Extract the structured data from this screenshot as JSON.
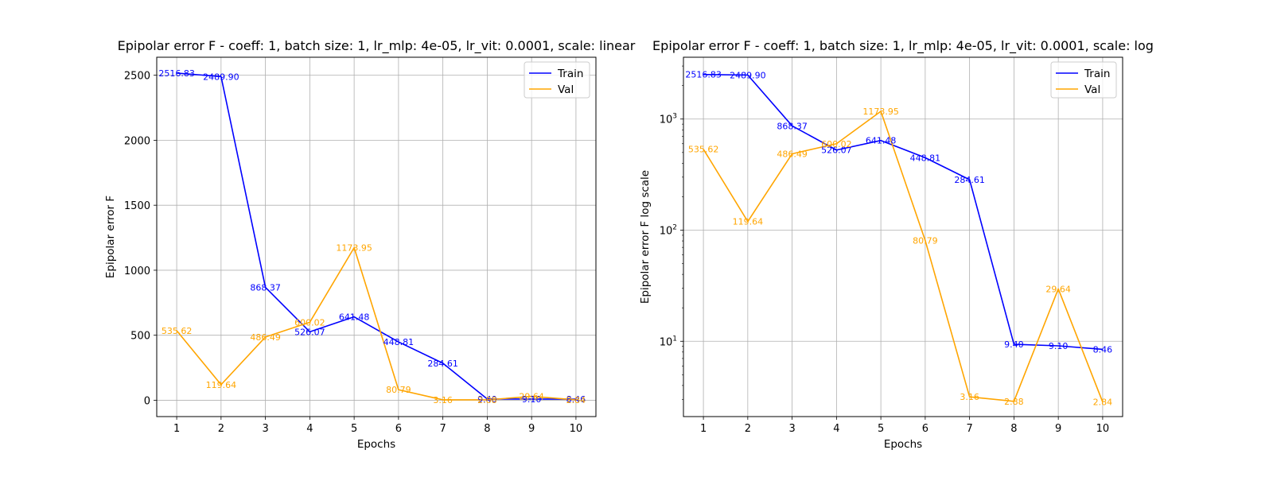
{
  "colors": {
    "train": "#0000ff",
    "val": "#ffa500",
    "grid": "#b0b0b0",
    "axis": "#000000"
  },
  "chart_data": [
    {
      "type": "line",
      "title": "Epipolar error F - coeff: 1, batch size: 1, lr_mlp: 4e-05, lr_vit: 0.0001, scale: linear",
      "xlabel": "Epochs",
      "ylabel": "Epipolar error F",
      "yscale": "linear",
      "xlim": [
        0.55,
        10.45
      ],
      "ylim": [
        -125.7,
        2638.5
      ],
      "x": [
        1,
        2,
        3,
        4,
        5,
        6,
        7,
        8,
        9,
        10
      ],
      "xticks": [
        "1",
        "2",
        "3",
        "4",
        "5",
        "6",
        "7",
        "8",
        "9",
        "10"
      ],
      "yticks": [
        {
          "value": 0,
          "label": "0"
        },
        {
          "value": 500,
          "label": "500"
        },
        {
          "value": 1000,
          "label": "1000"
        },
        {
          "value": 1500,
          "label": "1500"
        },
        {
          "value": 2000,
          "label": "2000"
        },
        {
          "value": 2500,
          "label": "2500"
        }
      ],
      "grid": true,
      "legend_position": "top-right",
      "series": [
        {
          "name": "Train",
          "color_key": "train",
          "values": [
            2516.83,
            2489.9,
            868.37,
            526.07,
            641.48,
            448.81,
            284.61,
            9.4,
            9.1,
            8.46
          ],
          "labels": [
            "2516.83",
            "2489.90",
            "868.37",
            "526.07",
            "641.48",
            "448.81",
            "284.61",
            "9.40",
            "9.10",
            "8.46"
          ]
        },
        {
          "name": "Val",
          "color_key": "val",
          "values": [
            535.62,
            119.64,
            486.49,
            600.02,
            1173.95,
            80.79,
            3.16,
            2.88,
            29.64,
            2.84
          ],
          "labels": [
            "535.62",
            "119.64",
            "486.49",
            "600.02",
            "1173.95",
            "80.79",
            "3.16",
            "2.88",
            "29.64",
            "2.84"
          ]
        }
      ]
    },
    {
      "type": "line",
      "title": "Epipolar error F - coeff: 1, batch size: 1, lr_mlp: 4e-05, lr_vit: 0.0001, scale: log",
      "xlabel": "Epochs",
      "ylabel": "Epipolar error F log scale",
      "yscale": "log",
      "xlim": [
        0.55,
        10.45
      ],
      "ylim": [
        2.1,
        3600
      ],
      "x": [
        1,
        2,
        3,
        4,
        5,
        6,
        7,
        8,
        9,
        10
      ],
      "xticks": [
        "1",
        "2",
        "3",
        "4",
        "5",
        "6",
        "7",
        "8",
        "9",
        "10"
      ],
      "yticks": [
        {
          "value": 10,
          "base": "10",
          "exp": "1"
        },
        {
          "value": 100,
          "base": "10",
          "exp": "2"
        },
        {
          "value": 1000,
          "base": "10",
          "exp": "3"
        }
      ],
      "grid": true,
      "legend_position": "top-right",
      "series": [
        {
          "name": "Train",
          "color_key": "train",
          "values": [
            2516.83,
            2489.9,
            868.37,
            526.07,
            641.48,
            448.81,
            284.61,
            9.4,
            9.1,
            8.46
          ],
          "labels": [
            "2516.83",
            "2489.90",
            "868.37",
            "526.07",
            "641.48",
            "448.81",
            "284.61",
            "9.40",
            "9.10",
            "8.46"
          ]
        },
        {
          "name": "Val",
          "color_key": "val",
          "values": [
            535.62,
            119.64,
            486.49,
            600.02,
            1173.95,
            80.79,
            3.16,
            2.88,
            29.64,
            2.84
          ],
          "labels": [
            "535.62",
            "119.64",
            "486.49",
            "600.02",
            "1173.95",
            "80.79",
            "3.16",
            "2.88",
            "29.64",
            "2.84"
          ]
        }
      ]
    }
  ]
}
